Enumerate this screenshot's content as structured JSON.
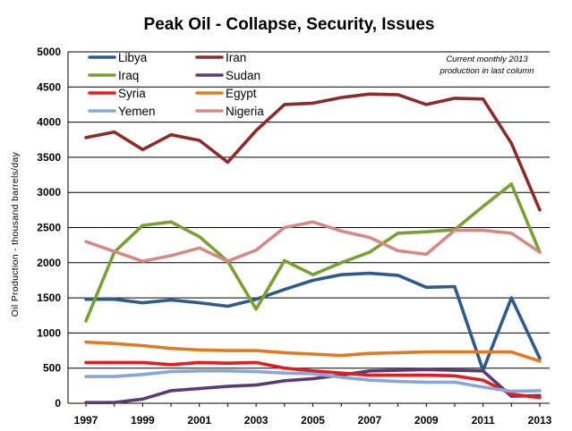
{
  "chart_data": {
    "type": "line",
    "title": "Peak Oil -  Collapse, Security, Issues",
    "ylabel": "Oil Production  - thousand  barrels/day",
    "xlabel": "",
    "annotation": [
      "Current monthly 2013",
      "production in last column"
    ],
    "ylim": [
      0,
      5000
    ],
    "yticks": [
      "0",
      "500",
      "1000",
      "1500",
      "2000",
      "2500",
      "3000",
      "3500",
      "4000",
      "4500",
      "5000"
    ],
    "x": [
      1997,
      1998,
      1999,
      2000,
      2001,
      2002,
      2003,
      2004,
      2005,
      2006,
      2007,
      2008,
      2009,
      2010,
      2011,
      2012,
      2013
    ],
    "xticks": [
      "1997",
      "1999",
      "2001",
      "2003",
      "2005",
      "2007",
      "2009",
      "2011",
      "2013"
    ],
    "grid": "horizontal major lines",
    "legend_position": "top-left, inside plot, two columns",
    "series": [
      {
        "name": "Libya",
        "color": "#2f5a8c",
        "values": [
          1480,
          1480,
          1430,
          1470,
          1430,
          1380,
          1480,
          1620,
          1750,
          1830,
          1850,
          1820,
          1650,
          1660,
          470,
          1500,
          640
        ]
      },
      {
        "name": "Iran",
        "color": "#8b2c2a",
        "values": [
          3780,
          3860,
          3610,
          3820,
          3740,
          3430,
          3880,
          4250,
          4270,
          4350,
          4400,
          4390,
          4250,
          4340,
          4330,
          3700,
          2750
        ]
      },
      {
        "name": "Iraq",
        "color": "#79a033",
        "values": [
          1170,
          2150,
          2530,
          2580,
          2370,
          2020,
          1340,
          2030,
          1830,
          2000,
          2150,
          2420,
          2440,
          2470,
          2800,
          3120,
          2150
        ]
      },
      {
        "name": "Sudan",
        "color": "#5a3b72",
        "values": [
          10,
          10,
          60,
          180,
          210,
          240,
          260,
          320,
          350,
          400,
          460,
          470,
          480,
          470,
          460,
          100,
          110
        ]
      },
      {
        "name": "Syria",
        "color": "#e01e1e",
        "values": [
          580,
          580,
          580,
          550,
          580,
          570,
          580,
          500,
          460,
          430,
          400,
          400,
          400,
          390,
          330,
          130,
          80
        ]
      },
      {
        "name": "Egypt",
        "color": "#e07b22",
        "values": [
          870,
          850,
          820,
          780,
          760,
          750,
          750,
          720,
          700,
          680,
          710,
          720,
          730,
          730,
          730,
          730,
          600
        ]
      },
      {
        "name": "Yemen",
        "color": "#8aa6d8",
        "values": [
          380,
          380,
          410,
          450,
          460,
          460,
          450,
          430,
          420,
          370,
          330,
          310,
          300,
          300,
          230,
          170,
          180
        ]
      },
      {
        "name": "Nigeria",
        "color": "#d58a86",
        "values": [
          2300,
          2160,
          2020,
          2100,
          2210,
          2020,
          2180,
          2500,
          2580,
          2450,
          2360,
          2170,
          2120,
          2460,
          2460,
          2420,
          2150
        ]
      }
    ]
  }
}
